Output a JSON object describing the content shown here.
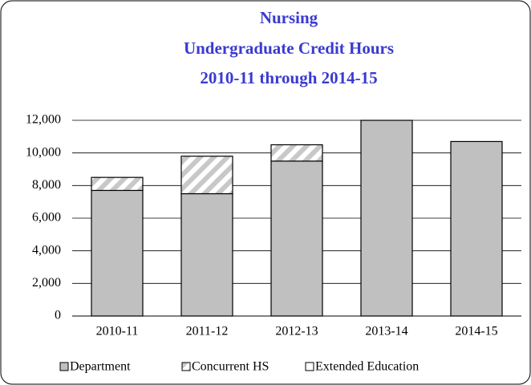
{
  "chart_data": {
    "type": "stacked_bar",
    "title": "Nursing",
    "subtitle": [
      "Undergraduate Credit Hours",
      "2010-11 through 2014-15"
    ],
    "categories": [
      "2010-11",
      "2011-12",
      "2012-13",
      "2013-14",
      "2014-15"
    ],
    "series": [
      {
        "name": "Department",
        "color": "#c0c0c0",
        "values": [
          7700,
          7500,
          9500,
          12000,
          10700
        ]
      },
      {
        "name": "Concurrent HS",
        "color": "#c8c8c8",
        "pattern": "hatch",
        "values": [
          800,
          2300,
          1000,
          0,
          0
        ]
      },
      {
        "name": "Extended Education",
        "color": "#ffffff",
        "values": [
          0,
          0,
          0,
          0,
          0
        ]
      }
    ],
    "ylim": [
      0,
      12000
    ],
    "yticks": [
      0,
      {
        "value": 2000,
        "label": "2,000"
      },
      {
        "value": 4000,
        "label": "4,000"
      },
      {
        "value": 6000,
        "label": "6,000"
      },
      {
        "value": 8000,
        "label": "8,000"
      },
      {
        "value": 10000,
        "label": "10,000"
      },
      {
        "value": 12000,
        "label": "12,000"
      }
    ],
    "grid": true,
    "legend": "bottom"
  }
}
